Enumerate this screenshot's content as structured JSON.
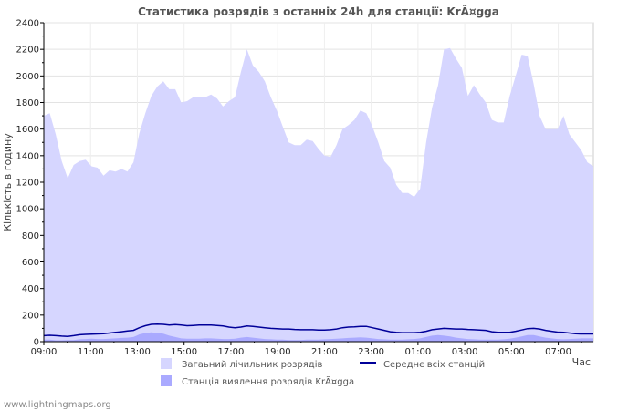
{
  "chart_data": {
    "type": "area",
    "title": "Статистика розрядів з останніх 24h для станції: KrÃ¤gga",
    "ylabel": "Кількість в годину",
    "xlabel": "Час",
    "ylim": [
      0,
      2400
    ],
    "yticks": [
      0,
      200,
      400,
      600,
      800,
      1000,
      1200,
      1400,
      1600,
      1800,
      2000,
      2200,
      2400
    ],
    "xlim": [
      0,
      23.5
    ],
    "xticks": [
      {
        "label": "09:00",
        "value": 0
      },
      {
        "label": "11:00",
        "value": 2
      },
      {
        "label": "13:00",
        "value": 4
      },
      {
        "label": "15:00",
        "value": 6
      },
      {
        "label": "17:00",
        "value": 8
      },
      {
        "label": "19:00",
        "value": 10
      },
      {
        "label": "21:00",
        "value": 12
      },
      {
        "label": "23:00",
        "value": 14
      },
      {
        "label": "01:00",
        "value": 16
      },
      {
        "label": "03:00",
        "value": 18
      },
      {
        "label": "05:00",
        "value": 20
      },
      {
        "label": "07:00",
        "value": 22
      }
    ],
    "series": [
      {
        "name": "Загаьний лічильник розрядів",
        "kind": "area",
        "color": "#d6d6ff",
        "values": [
          1700,
          1720,
          1560,
          1360,
          1230,
          1330,
          1360,
          1370,
          1320,
          1310,
          1250,
          1290,
          1280,
          1300,
          1280,
          1350,
          1570,
          1720,
          1850,
          1920,
          1960,
          1900,
          1900,
          1800,
          1810,
          1840,
          1840,
          1840,
          1860,
          1830,
          1770,
          1810,
          1840,
          2030,
          2200,
          2080,
          2030,
          1960,
          1840,
          1740,
          1620,
          1500,
          1480,
          1480,
          1520,
          1510,
          1450,
          1400,
          1390,
          1480,
          1600,
          1630,
          1670,
          1740,
          1720,
          1620,
          1500,
          1360,
          1310,
          1180,
          1120,
          1120,
          1090,
          1150,
          1500,
          1760,
          1930,
          2200,
          2210,
          2130,
          2060,
          1850,
          1930,
          1860,
          1800,
          1670,
          1650,
          1650,
          1850,
          2000,
          2160,
          2150,
          1940,
          1700,
          1600,
          1600,
          1600,
          1700,
          1560,
          1500,
          1440,
          1350,
          1320
        ]
      },
      {
        "name": "Станція виялення розрядів KrÃ¤gga",
        "kind": "area",
        "color": "#aaaaff",
        "values": [
          15,
          15,
          10,
          10,
          12,
          12,
          18,
          20,
          22,
          20,
          20,
          22,
          25,
          28,
          30,
          35,
          55,
          65,
          70,
          65,
          60,
          45,
          35,
          25,
          22,
          22,
          22,
          25,
          25,
          22,
          20,
          20,
          22,
          30,
          35,
          30,
          25,
          20,
          18,
          15,
          15,
          12,
          12,
          12,
          15,
          15,
          15,
          18,
          20,
          22,
          25,
          28,
          30,
          32,
          30,
          25,
          20,
          18,
          15,
          15,
          15,
          18,
          20,
          25,
          35,
          45,
          50,
          45,
          40,
          30,
          25,
          20,
          18,
          15,
          15,
          15,
          15,
          18,
          22,
          30,
          40,
          50,
          50,
          40,
          30,
          25,
          20,
          18,
          20,
          22,
          25,
          25,
          25
        ]
      },
      {
        "name": "Середнє всіх станцій",
        "kind": "line",
        "color": "#000099",
        "values": [
          45,
          48,
          45,
          42,
          40,
          45,
          52,
          55,
          57,
          58,
          60,
          65,
          70,
          75,
          80,
          85,
          105,
          120,
          130,
          132,
          130,
          125,
          128,
          125,
          120,
          122,
          125,
          125,
          125,
          122,
          118,
          110,
          105,
          110,
          118,
          115,
          110,
          105,
          100,
          98,
          95,
          95,
          92,
          90,
          90,
          90,
          88,
          88,
          90,
          95,
          105,
          110,
          112,
          115,
          115,
          105,
          95,
          85,
          75,
          70,
          68,
          68,
          68,
          70,
          78,
          90,
          95,
          100,
          98,
          95,
          95,
          92,
          90,
          88,
          85,
          75,
          70,
          70,
          70,
          78,
          88,
          98,
          100,
          95,
          85,
          78,
          72,
          70,
          65,
          60,
          58,
          58,
          58
        ]
      }
    ],
    "legend": [
      {
        "label": "Загаьний лічильник розрядів",
        "kind": "box",
        "color": "#d6d6ff"
      },
      {
        "label": "Середнє всіх станцій",
        "kind": "line",
        "color": "#000099"
      },
      {
        "label": "Станція виялення розрядів KrÃ¤gga",
        "kind": "box",
        "color": "#aaaaff"
      }
    ],
    "grid": true,
    "legend_position": "bottom"
  },
  "footer": "www.lightningmaps.org"
}
